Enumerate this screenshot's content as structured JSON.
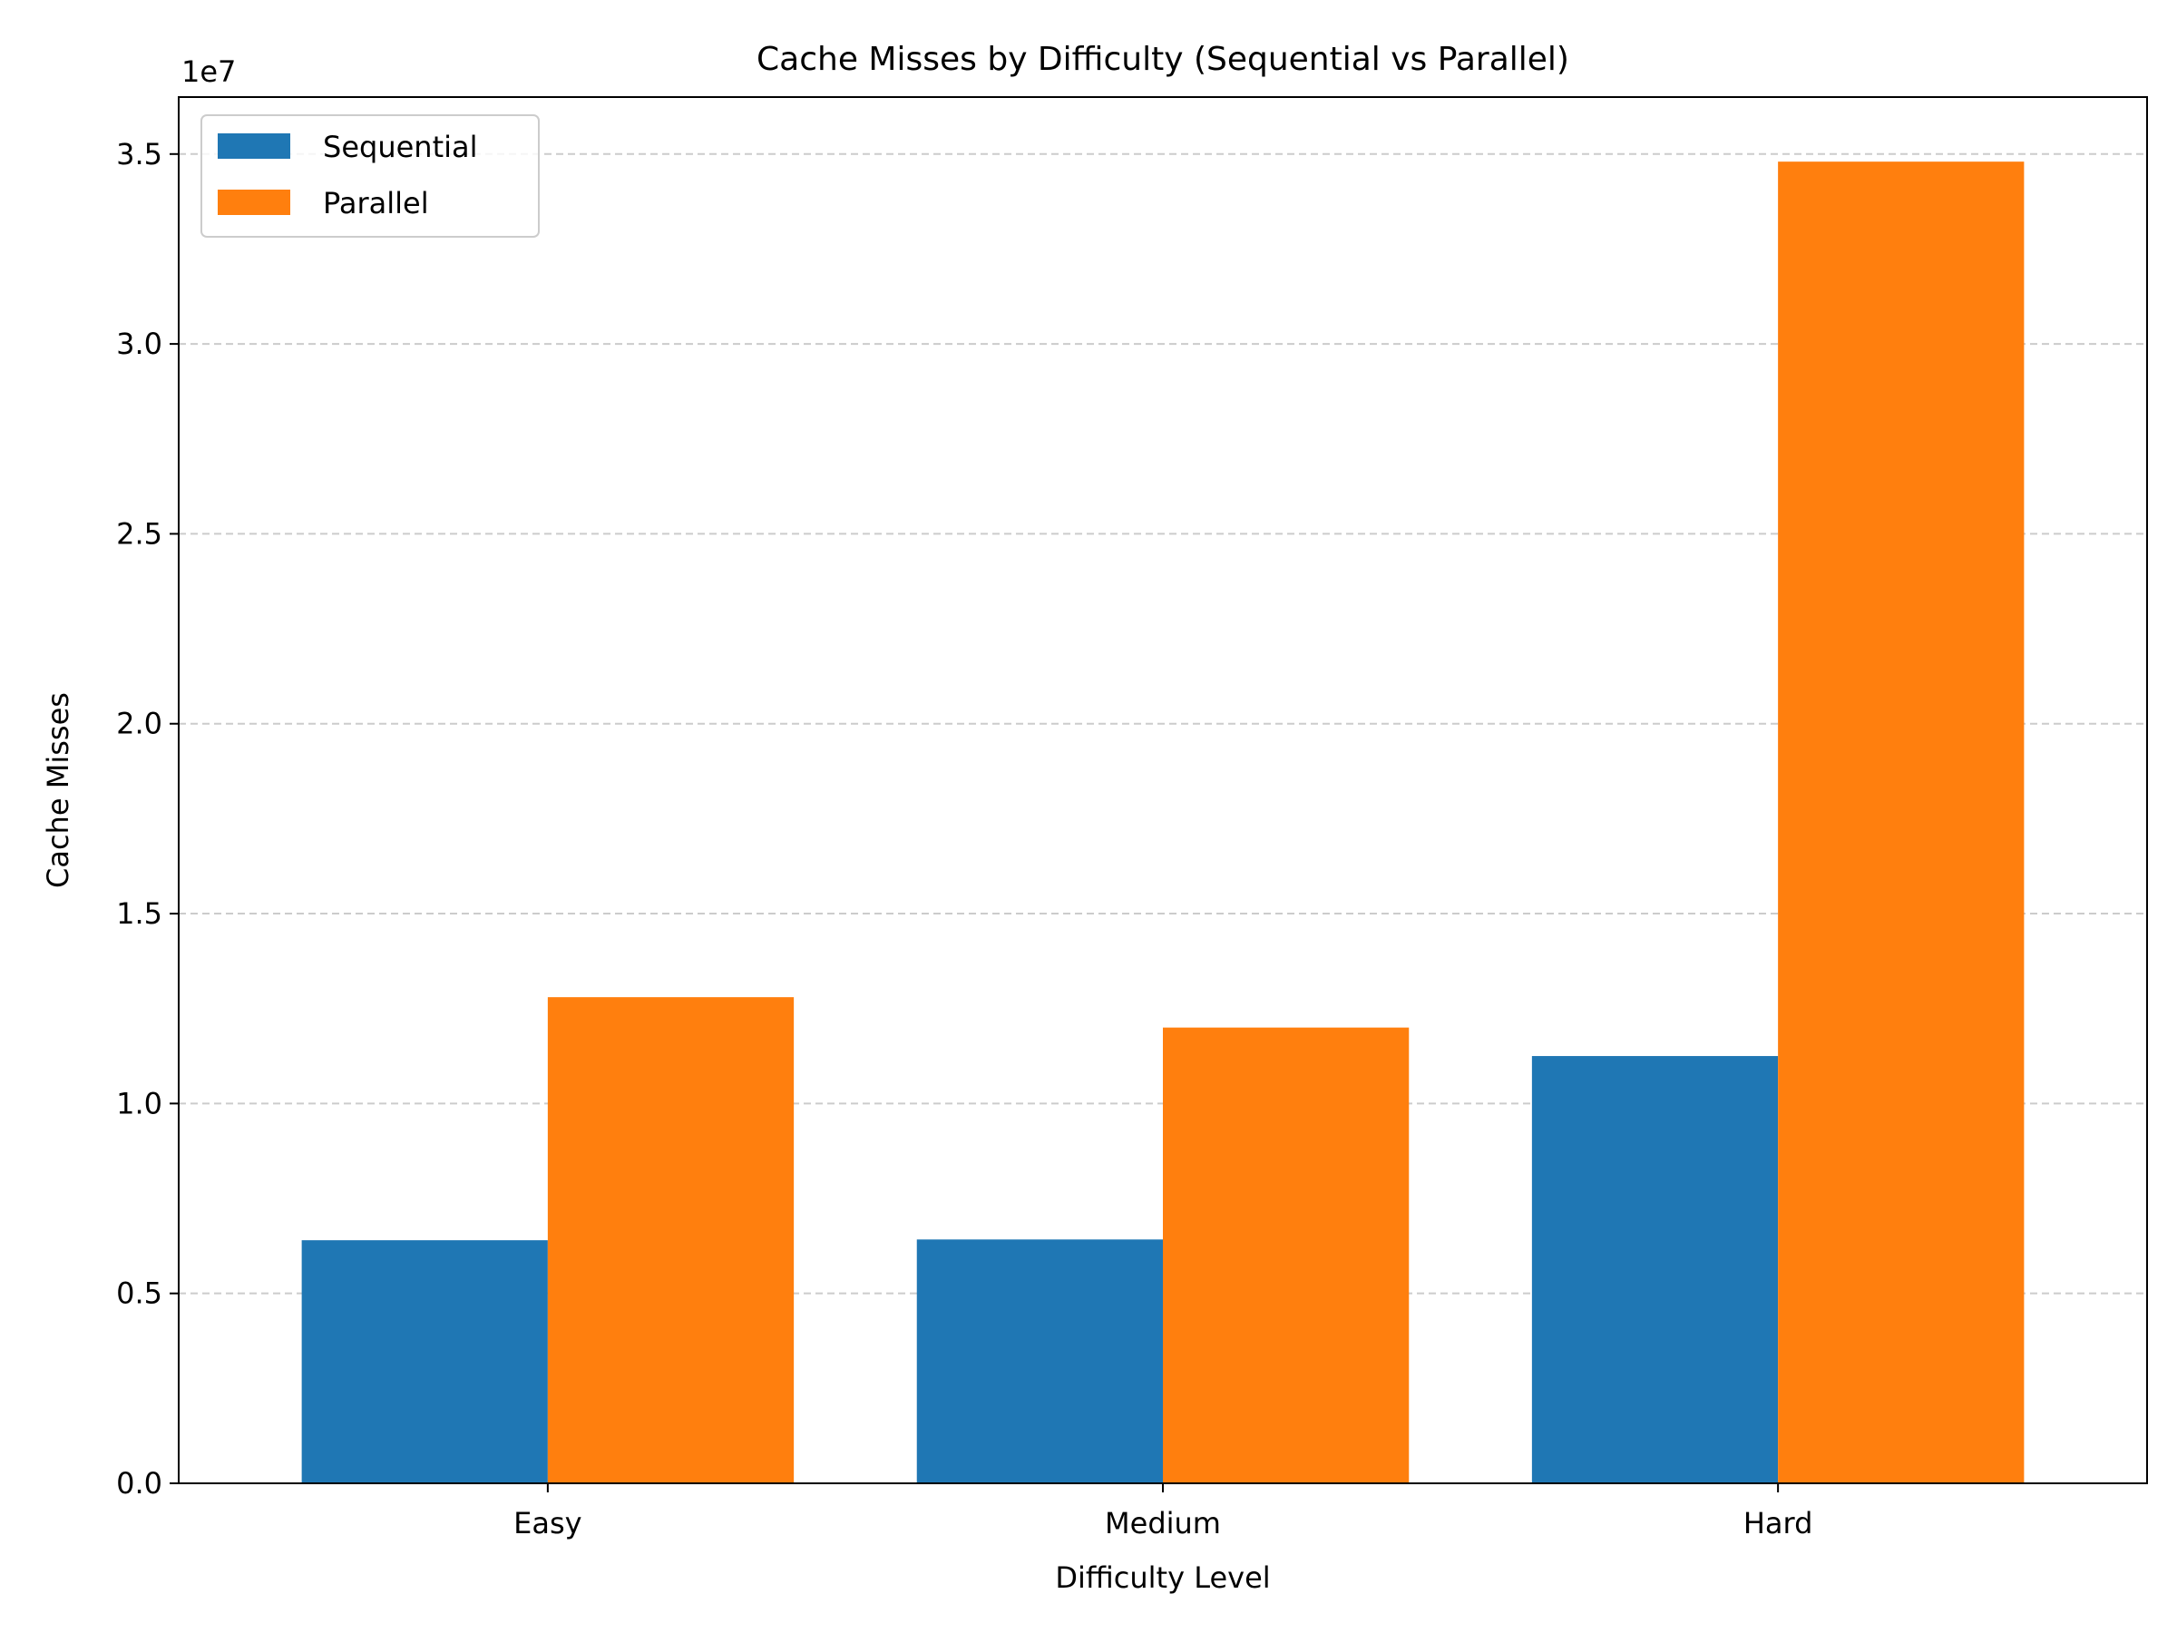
{
  "chart_data": {
    "type": "bar",
    "title": "Cache Misses by Difficulty (Sequential vs Parallel)",
    "xlabel": "Difficulty Level",
    "ylabel": "Cache Misses",
    "y_offset_label": "1e7",
    "categories": [
      "Easy",
      "Medium",
      "Hard"
    ],
    "series": [
      {
        "name": "Sequential",
        "color": "#1f77b4",
        "values": [
          6400000,
          6420000,
          11250000
        ]
      },
      {
        "name": "Parallel",
        "color": "#ff7f0e",
        "values": [
          12800000,
          12000000,
          34800000
        ]
      }
    ],
    "ylim": [
      0,
      36500000
    ],
    "yticks": [
      0,
      5000000,
      10000000,
      15000000,
      20000000,
      25000000,
      30000000,
      35000000
    ],
    "ytick_labels": [
      "0.0",
      "0.5",
      "1.0",
      "1.5",
      "2.0",
      "2.5",
      "3.0",
      "3.5"
    ],
    "grid": {
      "axis": "y",
      "style": "dashed",
      "color": "#cccccc"
    },
    "legend": {
      "position": "top-left"
    }
  }
}
